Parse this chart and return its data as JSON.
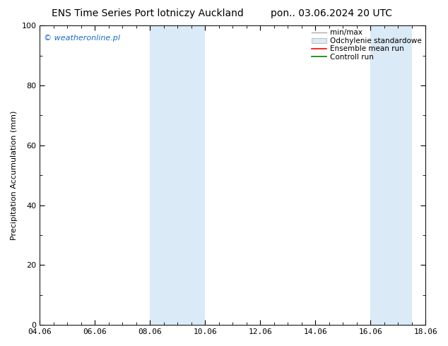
{
  "title_left": "ENS Time Series Port lotniczy Auckland",
  "title_right": "pon.. 03.06.2024 20 UTC",
  "ylabel": "Precipitation Accumulation (mm)",
  "xlim": [
    0,
    14
  ],
  "ylim": [
    0,
    100
  ],
  "yticks": [
    0,
    20,
    40,
    60,
    80,
    100
  ],
  "xtick_labels": [
    "04.06",
    "06.06",
    "08.06",
    "10.06",
    "12.06",
    "14.06",
    "16.06",
    "18.06"
  ],
  "xtick_positions": [
    0,
    2,
    4,
    6,
    8,
    10,
    12,
    14
  ],
  "shaded_bands": [
    {
      "x_start": 4.0,
      "x_end": 6.0,
      "color": "#daeaf7"
    },
    {
      "x_start": 12.0,
      "x_end": 13.5,
      "color": "#daeaf7"
    }
  ],
  "minmax_color": "#aaaaaa",
  "std_facecolor": "#daeaf7",
  "std_edgecolor": "#aaaaaa",
  "ensemble_mean_color": "#ff0000",
  "control_run_color": "#008000",
  "watermark_text": "© weatheronline.pl",
  "watermark_color": "#1a6bc4",
  "watermark_fontsize": 8,
  "title_fontsize": 10,
  "axis_fontsize": 8,
  "legend_fontsize": 7.5,
  "ylabel_fontsize": 8,
  "background_color": "#ffffff",
  "plot_bg_color": "#ffffff",
  "legend_items": [
    "min/max",
    "Odchylenie standardowe",
    "Ensemble mean run",
    "Controll run"
  ]
}
